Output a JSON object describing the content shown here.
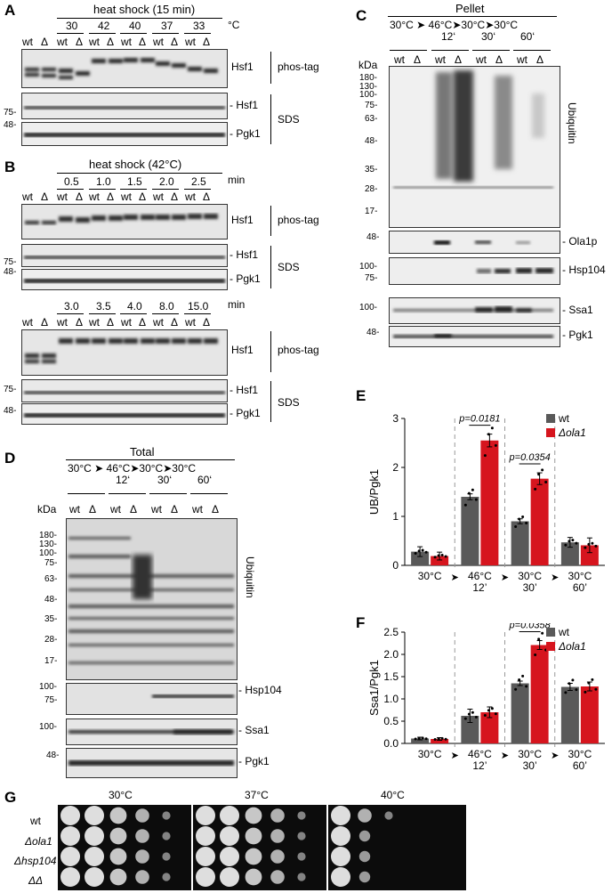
{
  "panels": {
    "A": "A",
    "B": "B",
    "C": "C",
    "D": "D",
    "E": "E",
    "F": "F",
    "G": "G"
  },
  "common": {
    "wt": "wt",
    "delta": "Δ",
    "hsf1": "Hsf1",
    "hsf1_dash": "- Hsf1",
    "pgk1_dash": "- Pgk1",
    "phostag": "phos-tag",
    "sds": "SDS",
    "min": "min",
    "degc": "°C",
    "kda": "kDa",
    "m75": "75-",
    "m48": "48-",
    "m100": "100-",
    "ubiquitin": "Ubiquitin",
    "ola1p": "- Ola1p",
    "hsp104": "- Hsp104",
    "ssa1": "- Ssa1",
    "pgk1": "- Pgk1"
  },
  "A": {
    "title": "heat shock (15 min)",
    "temps": [
      "30",
      "42",
      "40",
      "37",
      "33"
    ]
  },
  "B": {
    "title": "heat shock (42°C)",
    "times1": [
      "0.5",
      "1.0",
      "1.5",
      "2.0",
      "2.5"
    ],
    "times2": [
      "3.0",
      "3.5",
      "4.0",
      "8.0",
      "15.0"
    ]
  },
  "C": {
    "title": "Pellet",
    "cond": "30°C ➤ 46°C➤30°C➤30°C",
    "times": [
      "12‘",
      "30‘",
      "60‘"
    ],
    "markers": [
      "180-",
      "130-",
      "100-",
      "75-",
      "63-",
      "48-",
      "35-",
      "28-",
      "17-"
    ]
  },
  "D": {
    "title": "Total",
    "cond": "30°C ➤ 46°C➤30°C➤30°C",
    "times": [
      "12‘",
      "30‘",
      "60‘"
    ],
    "markers": [
      "180-",
      "130-",
      "100-",
      "75-",
      "63-",
      "48-",
      "35-",
      "28-",
      "17-"
    ]
  },
  "G": {
    "temps": [
      "30°C",
      "37°C",
      "40°C"
    ],
    "strains": [
      "wt",
      "Δola1",
      "Δhsp104",
      "ΔΔ"
    ]
  },
  "chart_data": [
    {
      "type": "bar",
      "title": "",
      "ylabel": "UB/Pgk1",
      "ylim": [
        0,
        3
      ],
      "yticks": [
        0,
        1,
        2,
        3
      ],
      "categories": [
        "30°C",
        "46°C 12’",
        "30°C 30’",
        "30°C 60’"
      ],
      "series": [
        {
          "name": "wt",
          "color": "#595959",
          "values": [
            0.28,
            1.4,
            0.9,
            0.47
          ],
          "errors": [
            0.1,
            0.06,
            0.05,
            0.1
          ]
        },
        {
          "name": "Δola1",
          "color": "#d6151e",
          "values": [
            0.19,
            2.55,
            1.77,
            0.41
          ],
          "errors": [
            0.08,
            0.13,
            0.12,
            0.15
          ]
        }
      ],
      "annotations": [
        {
          "text": "p=0.0181",
          "group": 1
        },
        {
          "text": "p=0.0354",
          "group": 2
        }
      ],
      "legend": "top-right"
    },
    {
      "type": "bar",
      "title": "",
      "ylabel": "Ssa1/Pgk1",
      "ylim": [
        0,
        2.5
      ],
      "yticks": [
        0,
        0.5,
        1.0,
        1.5,
        2.0,
        2.5
      ],
      "categories": [
        "30°C",
        "46°C 12’",
        "30°C 30’",
        "30°C 60’"
      ],
      "series": [
        {
          "name": "wt",
          "color": "#595959",
          "values": [
            0.11,
            0.62,
            1.35,
            1.27
          ],
          "errors": [
            0.03,
            0.15,
            0.05,
            0.08
          ]
        },
        {
          "name": "Δola1",
          "color": "#d6151e",
          "values": [
            0.1,
            0.7,
            2.21,
            1.28
          ],
          "errors": [
            0.03,
            0.12,
            0.1,
            0.1
          ]
        }
      ],
      "annotations": [
        {
          "text": "p=0.0358",
          "group": 2
        }
      ],
      "legend": "top-right"
    }
  ]
}
